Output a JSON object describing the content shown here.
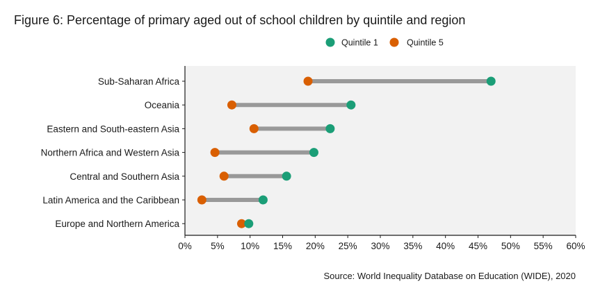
{
  "chart_data": {
    "type": "dumbbell",
    "title": "Figure 6: Percentage of primary aged out of school children by quintile and region",
    "source": "Source: World Inequality Database on Education (WIDE), 2020",
    "categories": [
      "Sub-Saharan Africa",
      "Oceania",
      "Eastern and South-eastern Asia",
      "Northern Africa and Western Asia",
      "Central and Southern Asia",
      "Latin America and the Caribbean",
      "Europe and Northern America"
    ],
    "series": [
      {
        "name": "Quintile 1",
        "color": "#1b9e77",
        "values": [
          47,
          25.5,
          22.3,
          19.8,
          15.6,
          12,
          9.8
        ]
      },
      {
        "name": "Quintile 5",
        "color": "#d95f02",
        "values": [
          18.9,
          7.2,
          10.6,
          4.6,
          6,
          2.6,
          8.7
        ]
      }
    ],
    "xlim": [
      0,
      60
    ],
    "xticks": [
      "0%",
      "5%",
      "10%",
      "15%",
      "20%",
      "25%",
      "30%",
      "35%",
      "40%",
      "45%",
      "50%",
      "55%",
      "60%"
    ],
    "xtick_values": [
      0,
      5,
      10,
      15,
      20,
      25,
      30,
      35,
      40,
      45,
      50,
      55,
      60
    ],
    "connector_color": "#999999",
    "panel_background": "#f2f2f2",
    "legend_position": "top-right",
    "grid": false
  }
}
